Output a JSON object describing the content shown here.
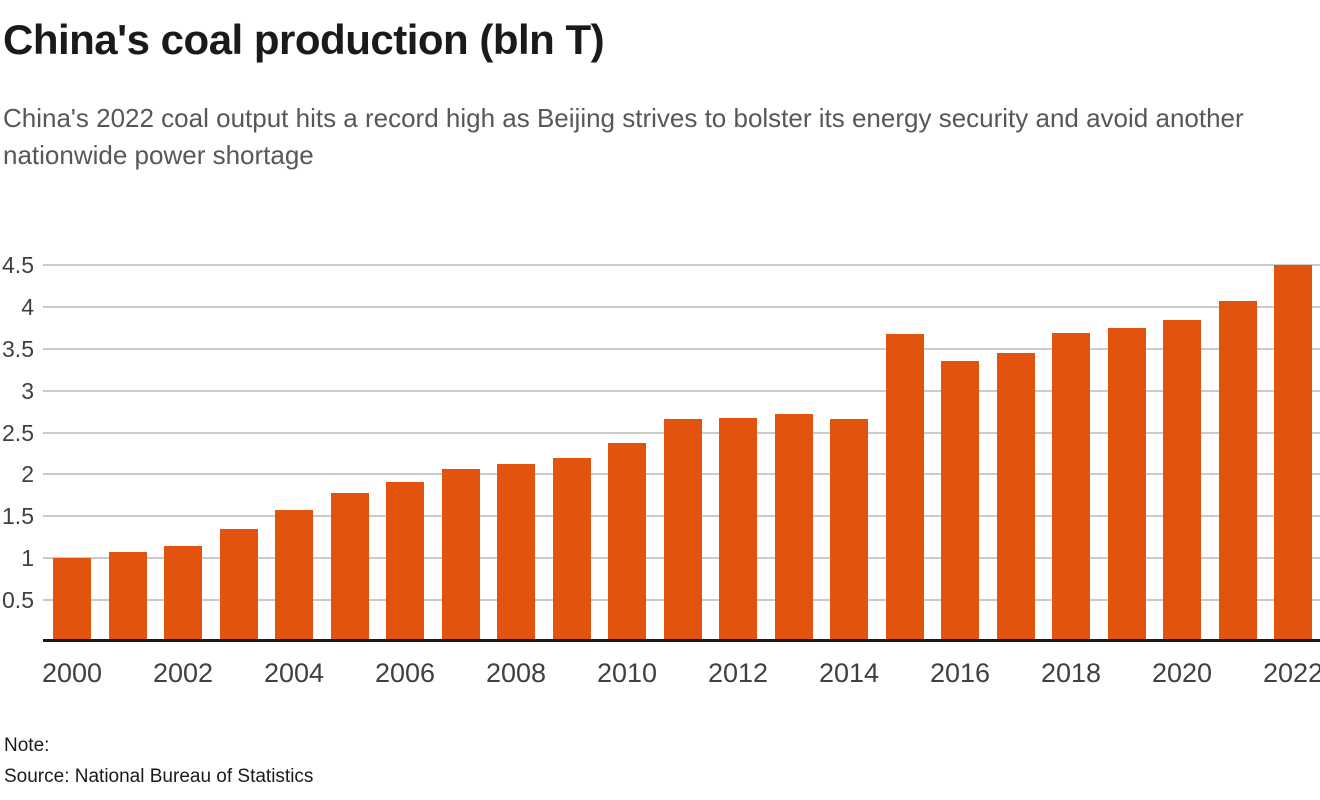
{
  "header": {
    "title": "China's coal production (bln T)",
    "subtitle": "China's 2022 coal output hits a record high as Beijing strives to bolster its energy security and avoid another nationwide power shortage"
  },
  "chart_data": {
    "type": "bar",
    "title": "China's coal production (bln T)",
    "categories": [
      "2000",
      "2001",
      "2002",
      "2003",
      "2004",
      "2005",
      "2006",
      "2007",
      "2008",
      "2009",
      "2010",
      "2011",
      "2012",
      "2013",
      "2014",
      "2015",
      "2016",
      "2017",
      "2018",
      "2019",
      "2020",
      "2021",
      "2022"
    ],
    "values": [
      1.0,
      1.07,
      1.15,
      1.35,
      1.58,
      1.78,
      1.91,
      2.06,
      2.13,
      2.2,
      2.38,
      2.66,
      2.67,
      2.72,
      2.66,
      3.68,
      3.36,
      3.45,
      3.69,
      3.75,
      3.84,
      4.07,
      4.5
    ],
    "xlabel": "",
    "ylabel": "",
    "ylim": [
      0,
      4.5
    ],
    "yticks": [
      0.5,
      1,
      1.5,
      2,
      2.5,
      3,
      3.5,
      4,
      4.5
    ],
    "ytick_labels": [
      "0.5",
      "1",
      "1.5",
      "2",
      "2.5",
      "3",
      "3.5",
      "4",
      "4.5"
    ],
    "xtick_labels": [
      "2000",
      "2002",
      "2004",
      "2006",
      "2008",
      "2010",
      "2012",
      "2014",
      "2016",
      "2018",
      "2020",
      "2022"
    ],
    "grid": "horizontal-gridlines-on",
    "legend": "none",
    "bar_color": "#e2540d",
    "gridline_color": "#cbcbcb",
    "axis_line_color": "#1a1a1a",
    "tick_label_color": "#404040"
  },
  "footer": {
    "note": "Note:",
    "source": "Source: National Bureau of Statistics"
  },
  "colors": {
    "background": "#ffffff",
    "title": "#1a1a1a",
    "subtitle": "#56575b",
    "accent_orange": "#e2540d"
  }
}
